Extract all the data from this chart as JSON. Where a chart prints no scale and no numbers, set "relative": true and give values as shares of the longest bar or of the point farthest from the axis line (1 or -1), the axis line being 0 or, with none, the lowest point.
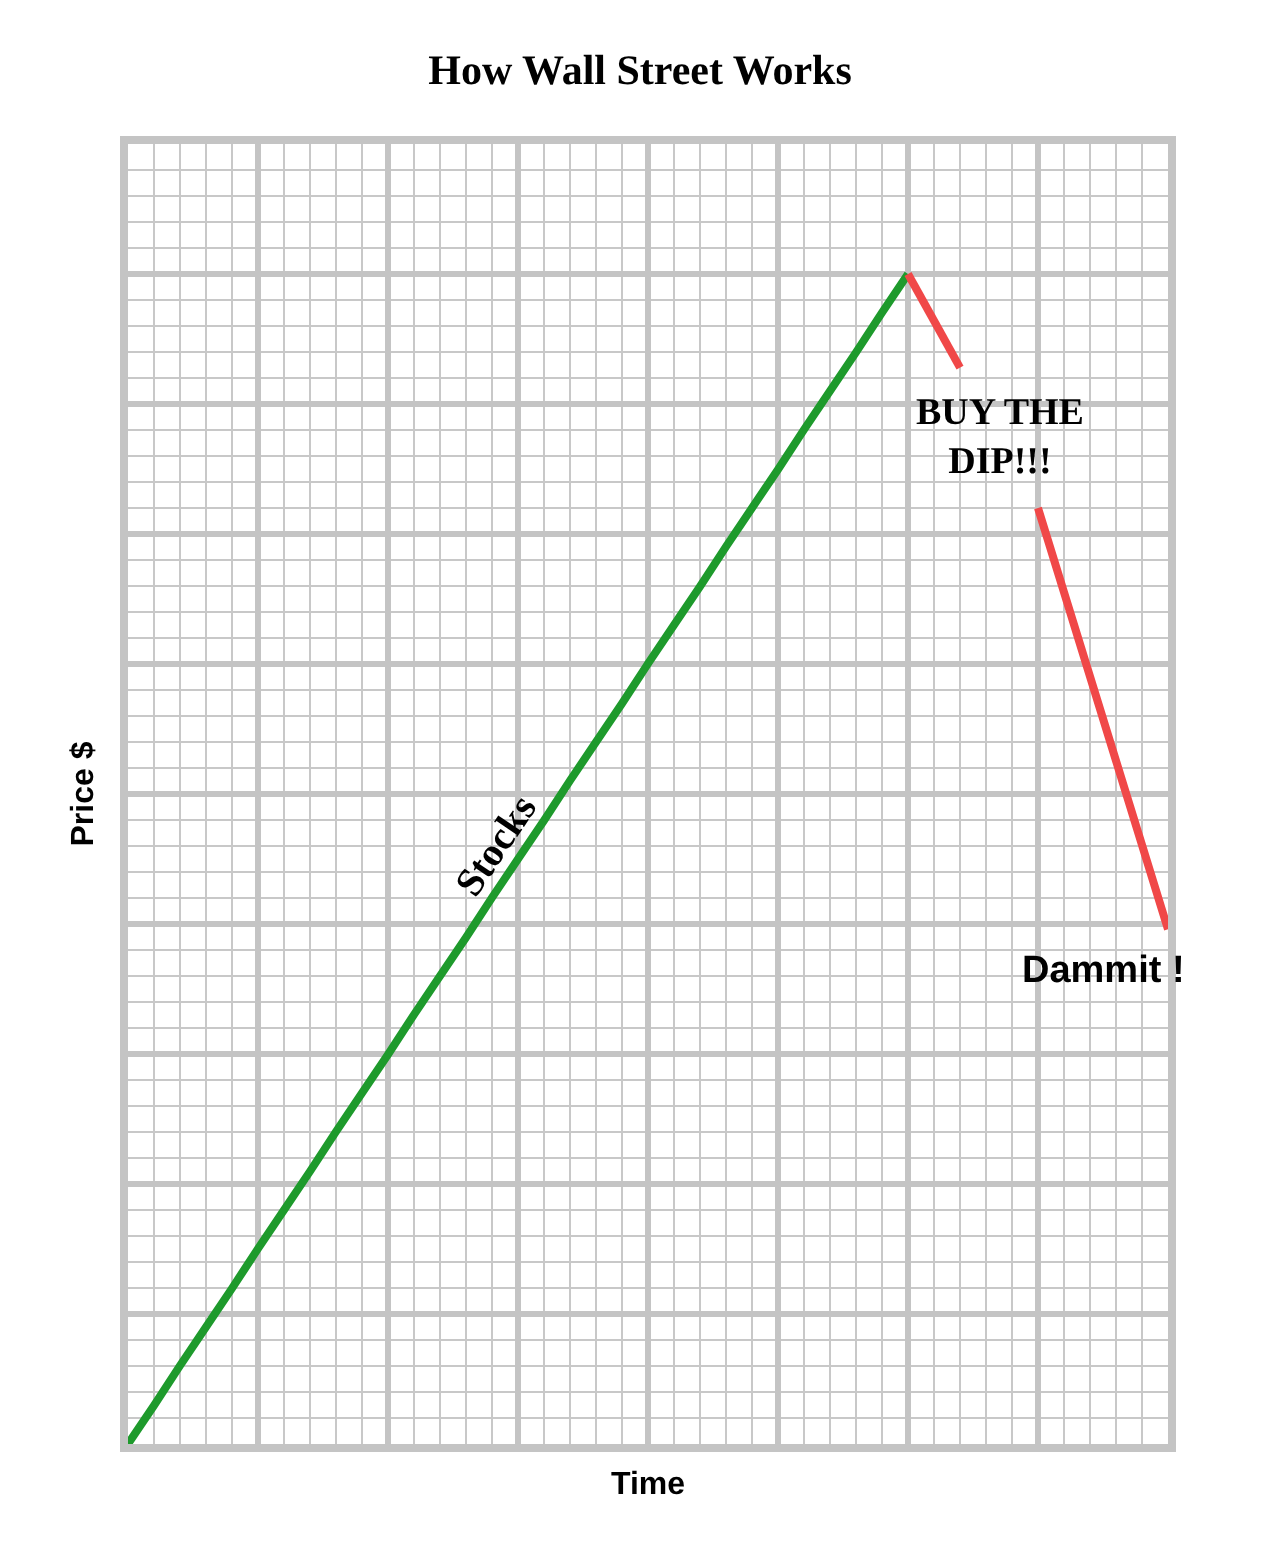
{
  "chart_data": {
    "type": "line",
    "title": "How Wall Street Works",
    "xlabel": "Time",
    "ylabel": "Price $",
    "relative": true,
    "tick_labels": false,
    "grid": true,
    "legend": false,
    "categories": [
      null,
      null,
      null,
      null,
      null,
      null,
      null,
      null,
      null,
      null,
      null,
      null,
      null,
      null,
      null,
      null,
      null,
      null,
      null,
      null,
      null,
      null,
      null,
      null,
      null,
      null,
      null,
      null,
      null,
      null,
      null,
      null,
      null,
      null,
      null,
      null,
      null,
      null,
      null,
      null,
      null
    ],
    "series": [
      {
        "name": "Stocks",
        "color": "#1e9a2c",
        "values": [
          0,
          0.033,
          0.067,
          0.1,
          0.133,
          0.167,
          0.2,
          0.233,
          0.267,
          0.3,
          0.333,
          0.367,
          0.4,
          0.433,
          0.467,
          0.5,
          0.533,
          0.567,
          0.6,
          0.633,
          0.667,
          0.7,
          0.733,
          0.767,
          0.8,
          0.833,
          0.867,
          0.9,
          0.933,
          0.967,
          1,
          null,
          null,
          null,
          null,
          null,
          null,
          null,
          null,
          null,
          null
        ]
      },
      {
        "color": "#f04848",
        "values": [
          null,
          null,
          null,
          null,
          null,
          null,
          null,
          null,
          null,
          null,
          null,
          null,
          null,
          null,
          null,
          null,
          null,
          null,
          null,
          null,
          null,
          null,
          null,
          null,
          null,
          null,
          null,
          null,
          null,
          null,
          1,
          0.96,
          0.92,
          null,
          null,
          null,
          null,
          null,
          null,
          null,
          null
        ]
      },
      {
        "color": "#f04848",
        "values": [
          null,
          null,
          null,
          null,
          null,
          null,
          null,
          null,
          null,
          null,
          null,
          null,
          null,
          null,
          null,
          null,
          null,
          null,
          null,
          null,
          null,
          null,
          null,
          null,
          null,
          null,
          null,
          null,
          null,
          null,
          null,
          null,
          null,
          null,
          null,
          0.8,
          0.728,
          0.656,
          0.584,
          0.512,
          0.44
        ]
      }
    ],
    "annotations": [
      "BUY THE DIP!!!",
      "Dammit !"
    ]
  }
}
